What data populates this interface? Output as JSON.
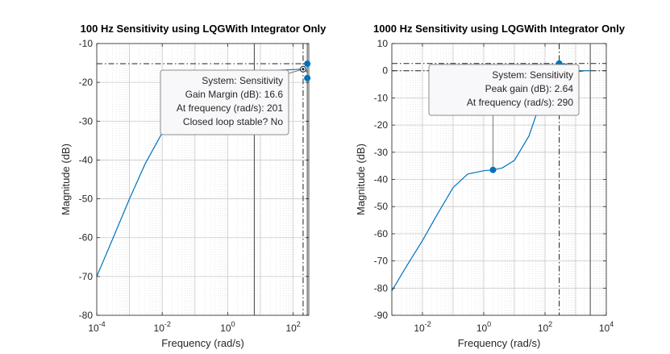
{
  "chart_data": [
    {
      "type": "line",
      "title": "100 Hz Sensitivity using LQGWith Integrator Only",
      "xlabel": "Frequency  (rad/s)",
      "ylabel": "Magnitude (dB)",
      "xscale": "log",
      "xlim": [
        0.0001,
        300
      ],
      "ylim": [
        -80,
        -10
      ],
      "xticks": [
        {
          "value": 0.0001,
          "base": "10",
          "exp": "-4"
        },
        {
          "value": 0.01,
          "base": "10",
          "exp": "-2"
        },
        {
          "value": 1,
          "base": "10",
          "exp": "0"
        },
        {
          "value": 100,
          "base": "10",
          "exp": "2"
        }
      ],
      "yticks": [
        "-80",
        "-70",
        "-60",
        "-50",
        "-40",
        "-30",
        "-20",
        "-10"
      ],
      "grid": true,
      "line_color": "#0072BD",
      "series": [
        {
          "x": [
            0.0001,
            0.0003,
            0.001,
            0.003,
            0.01,
            0.03,
            0.1,
            0.3,
            1,
            3,
            10,
            30,
            100,
            160,
            201,
            240,
            270
          ],
          "y": [
            -70,
            -60.5,
            -50,
            -41,
            -33,
            -27,
            -23,
            -20.5,
            -18.8,
            -18,
            -17.3,
            -16.9,
            -16.7,
            -16.6,
            -16.6,
            -16.8,
            -17.5
          ]
        }
      ],
      "reference_lines": {
        "h": [
          -15.2
        ],
        "v": [
          6.5,
          201,
          270
        ]
      },
      "markers": [
        {
          "x": 201,
          "y": -16.6
        },
        {
          "x": 270,
          "y": -15.2
        },
        {
          "x": 270,
          "y": -18.9
        }
      ],
      "datatip": {
        "lines": [
          "System: Sensitivity",
          "Gain Margin (dB): 16.6",
          "At frequency (rad/s): 201",
          "Closed loop stable? No"
        ]
      }
    },
    {
      "type": "line",
      "title": "1000 Hz Sensitivity using LQGWith Integrator Only",
      "xlabel": "Frequency  (rad/s)",
      "ylabel": "Magnitude (dB)",
      "xscale": "log",
      "xlim": [
        0.001,
        10000
      ],
      "ylim": [
        -90,
        10
      ],
      "xticks": [
        {
          "value": 0.01,
          "base": "10",
          "exp": "-2"
        },
        {
          "value": 1,
          "base": "10",
          "exp": "0"
        },
        {
          "value": 100,
          "base": "10",
          "exp": "2"
        },
        {
          "value": 10000,
          "base": "10",
          "exp": "4"
        }
      ],
      "yticks": [
        "-90",
        "-80",
        "-70",
        "-60",
        "-50",
        "-40",
        "-30",
        "-20",
        "-10",
        "0",
        "10"
      ],
      "grid": true,
      "line_color": "#0072BD",
      "series": [
        {
          "x": [
            0.001,
            0.003,
            0.01,
            0.03,
            0.1,
            0.3,
            1,
            2,
            4,
            10,
            30,
            60,
            100,
            200,
            290,
            500,
            1000,
            2000,
            3000
          ],
          "y": [
            -81,
            -72,
            -62.5,
            -53,
            -43,
            -38,
            -36.8,
            -36.5,
            -35.8,
            -33,
            -24,
            -14,
            -6,
            0.8,
            2.64,
            2.4,
            -0.5,
            0,
            0
          ]
        }
      ],
      "reference_lines": {
        "h": [
          2.64,
          0
        ],
        "v": [
          290,
          3000
        ]
      },
      "markers": [
        {
          "x": 290,
          "y": 2.64
        },
        {
          "x": 2,
          "y": -36.5
        }
      ],
      "datatip": {
        "lines": [
          "System: Sensitivity",
          "Peak gain (dB): 2.64",
          "At frequency (rad/s): 290"
        ]
      }
    }
  ]
}
